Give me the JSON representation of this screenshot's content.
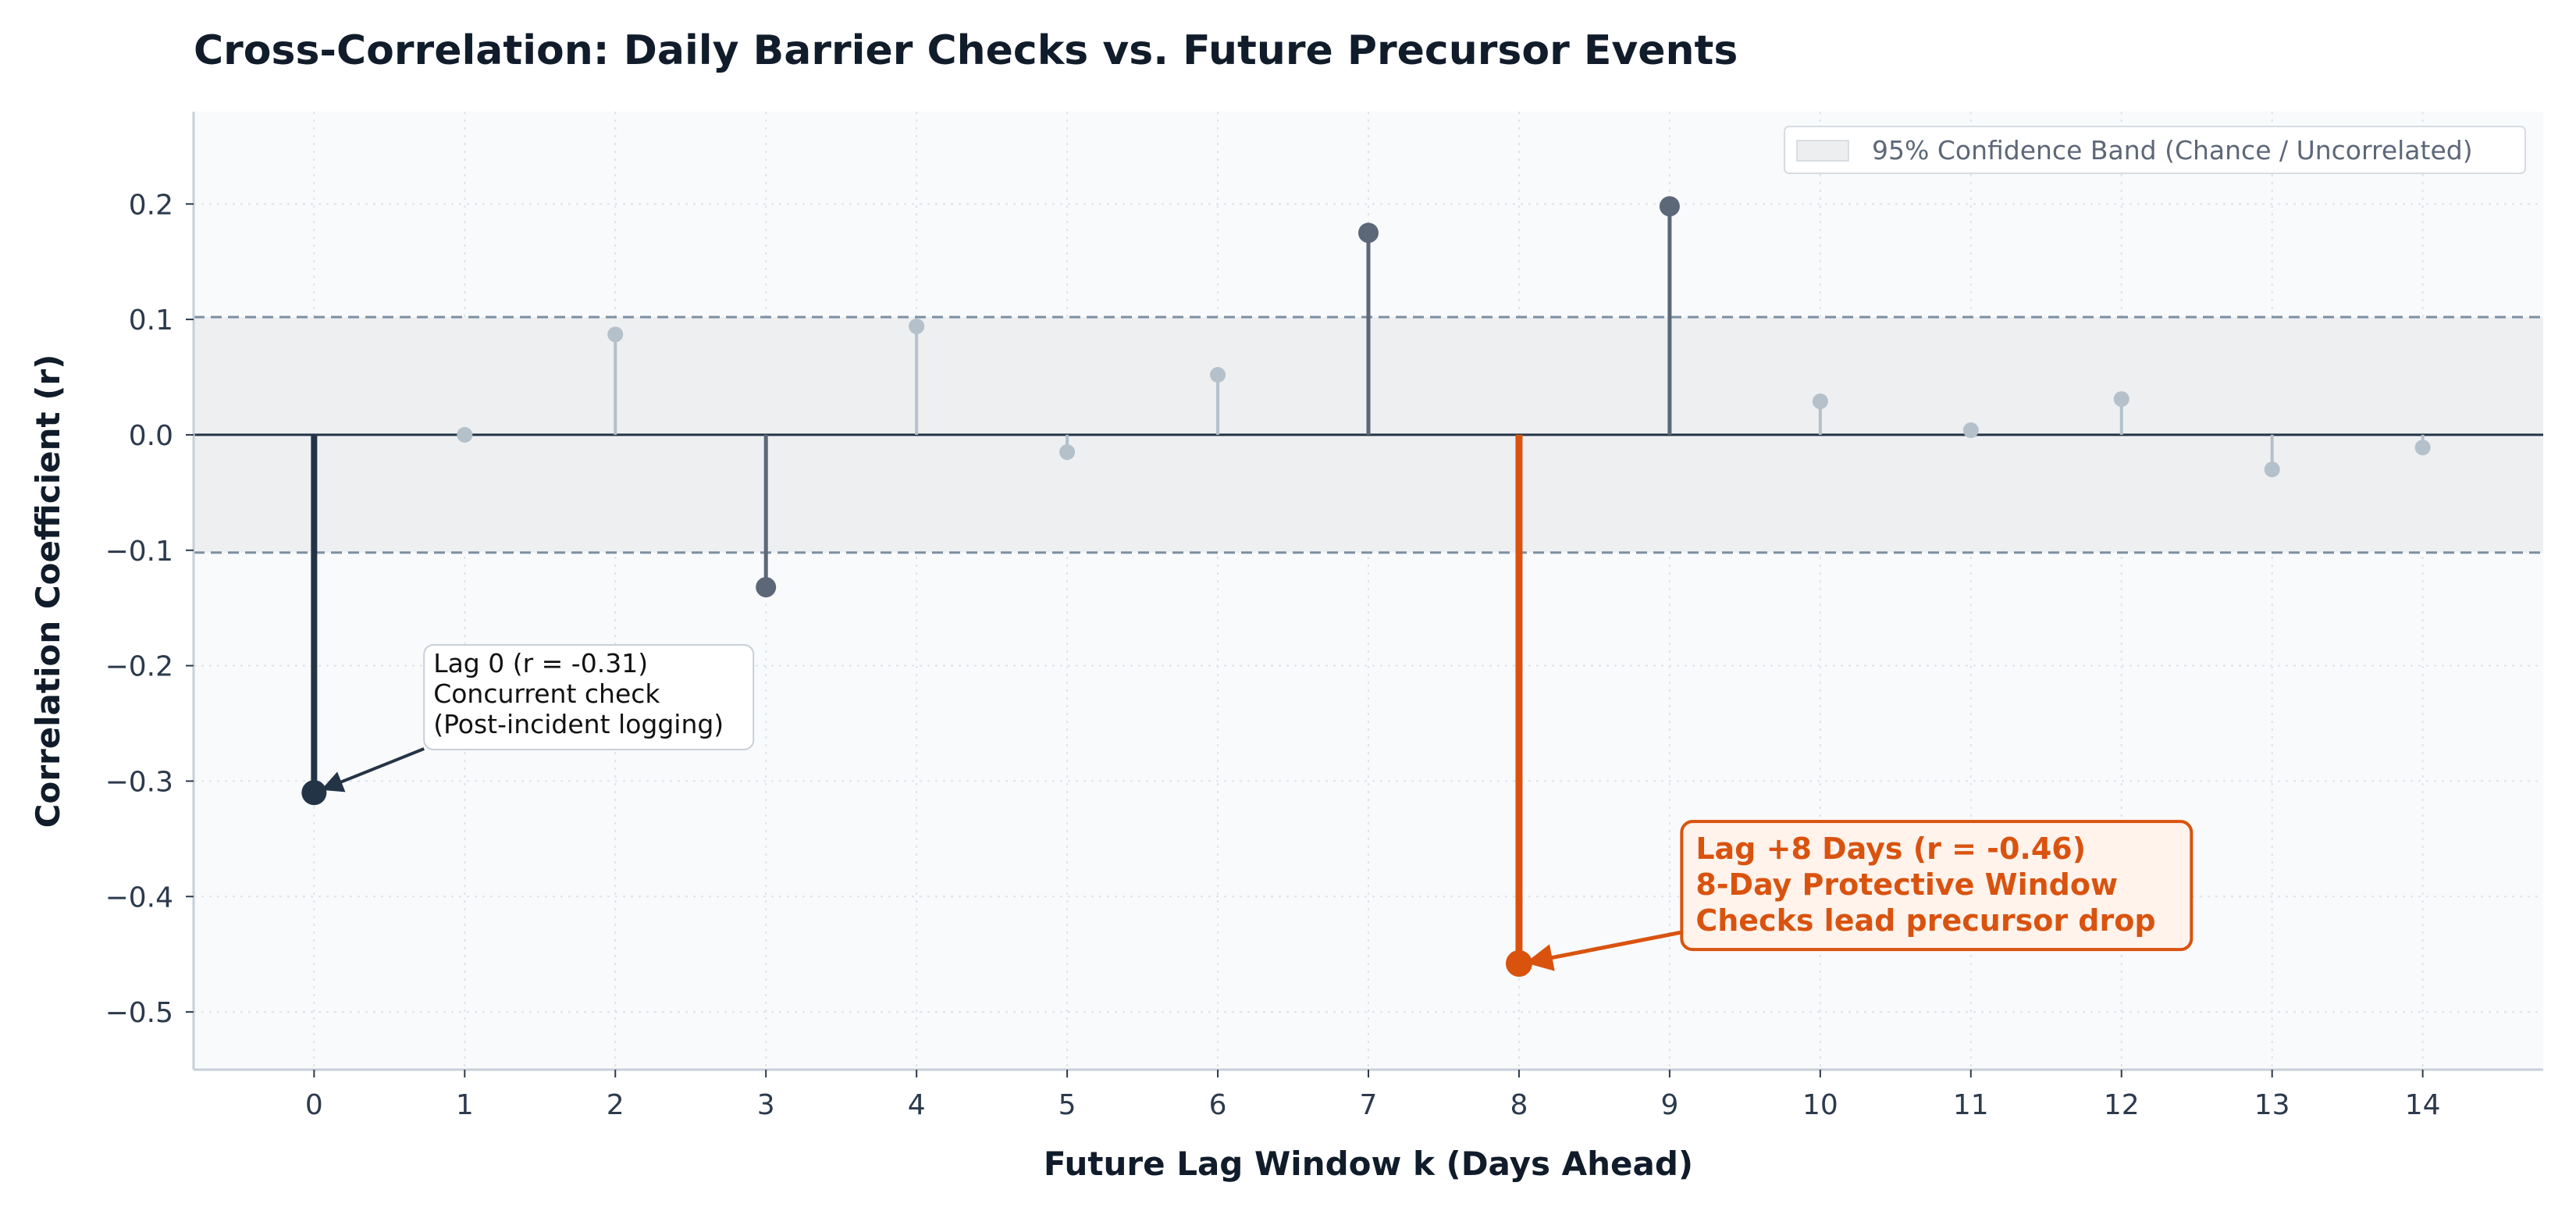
{
  "chart_data": {
    "type": "stem",
    "title": "Cross-Correlation: Daily Barrier Checks vs. Future Precursor Events",
    "xlabel": "Future Lag Window k (Days Ahead)",
    "ylabel": "Correlation Coefficient (r)",
    "x": [
      0,
      1,
      2,
      3,
      4,
      5,
      6,
      7,
      8,
      9,
      10,
      11,
      12,
      13,
      14
    ],
    "values": [
      -0.31,
      0.0,
      0.087,
      -0.132,
      0.094,
      -0.015,
      0.052,
      0.175,
      -0.458,
      0.198,
      0.029,
      0.004,
      0.031,
      -0.03,
      -0.011
    ],
    "xlim": [
      -0.8,
      14.8
    ],
    "ylim": [
      -0.55,
      0.28
    ],
    "yticks": [
      0.2,
      0.1,
      0.0,
      -0.1,
      -0.2,
      -0.3,
      -0.4,
      -0.5
    ],
    "ytick_labels": [
      "0.2",
      "0.1",
      "0.0",
      "−0.1",
      "−0.2",
      "−0.3",
      "−0.4",
      "−0.5"
    ],
    "confidence_band": [
      -0.102,
      0.102
    ],
    "legend": {
      "label": "95% Confidence Band (Chance / Uncorrelated)",
      "position": "top-right"
    },
    "grid": true,
    "highlight": {
      "lag": 8,
      "color": "#d9530f"
    },
    "annotations": [
      {
        "lag": 0,
        "lines": [
          "Lag 0 (r = -0.31)",
          "Concurrent check",
          "(Post-incident logging)"
        ]
      },
      {
        "lag": 8,
        "lines": [
          "Lag +8 Days (r = -0.46)",
          "8-Day Protective Window",
          "Checks lead precursor drop"
        ]
      }
    ],
    "colors": {
      "significant": "#5c6778",
      "insignificant": "#b4c0ca",
      "lag0": "#243447",
      "highlight": "#d9530f",
      "band": "#eceef0",
      "band_edge": "#7d8fa3",
      "plot_bg": "#f9fafc",
      "zero_line": "#243447"
    }
  }
}
